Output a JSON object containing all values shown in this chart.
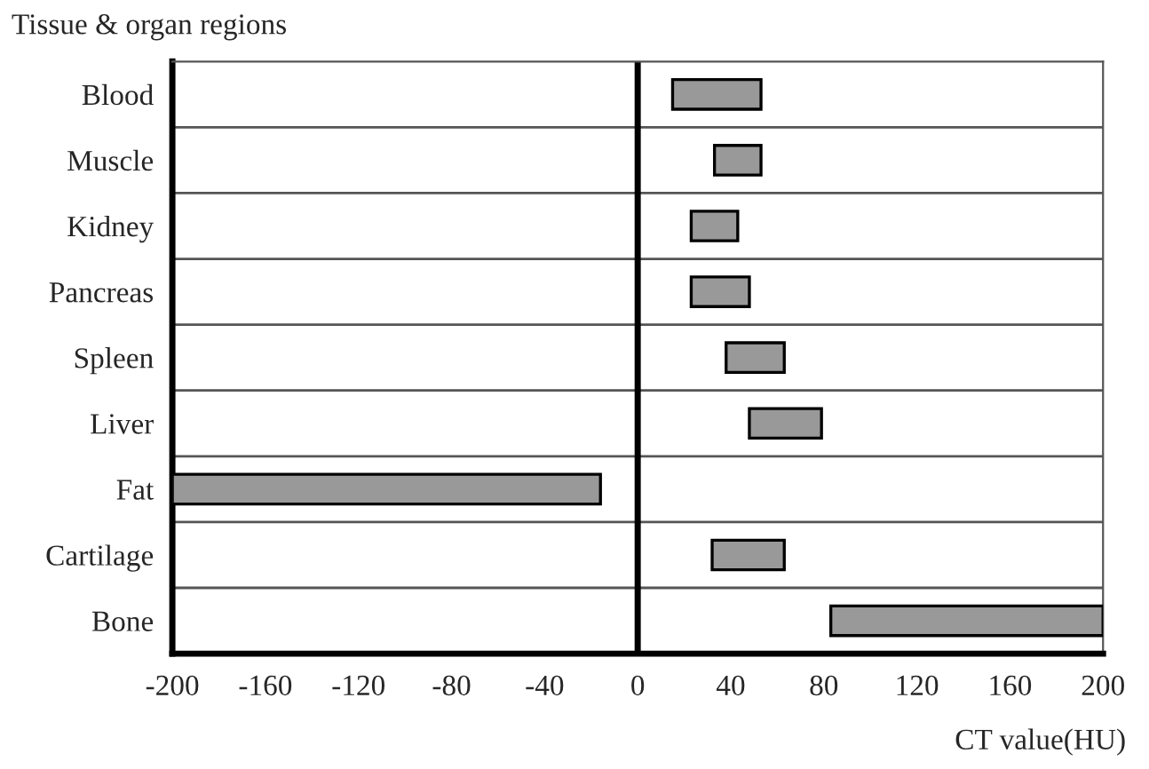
{
  "chart_data": {
    "type": "bar",
    "orientation": "horizontal",
    "ylabel": "Tissue & organ regions",
    "xlabel": "CT value(HU)",
    "categories": [
      "Blood",
      "Muscle",
      "Kidney",
      "Pancreas",
      "Spleen",
      "Liver",
      "Fat",
      "Cartilage",
      "Bone"
    ],
    "base": [
      15,
      33,
      23,
      23,
      38,
      48,
      -200,
      32,
      83
    ],
    "values": [
      38,
      20,
      20,
      25,
      25,
      31,
      184,
      31,
      117
    ],
    "color": "#999999",
    "xlim": [
      -200,
      200
    ],
    "xticks": [
      -200,
      -160,
      -120,
      -80,
      -40,
      0,
      40,
      80,
      120,
      160,
      200
    ],
    "ref_lines": [
      {
        "axis": "x",
        "value": 0,
        "color": "#000000"
      }
    ],
    "grid": "y",
    "legend": false
  }
}
